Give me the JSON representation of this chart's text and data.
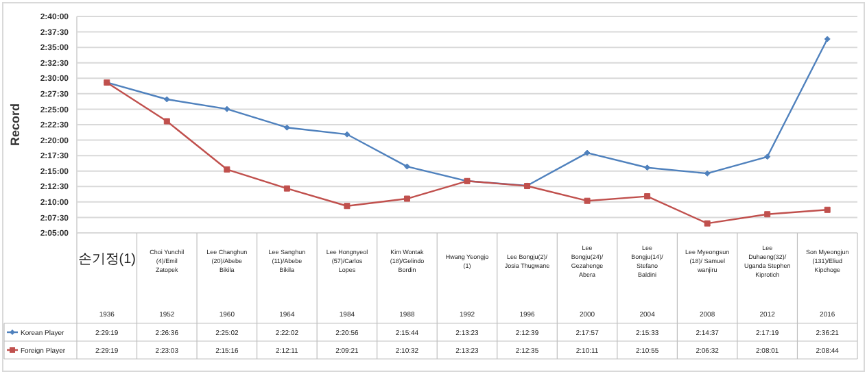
{
  "chart_data": {
    "type": "line",
    "ylabel": "Record",
    "categories": [
      "손기정(1)\n1936",
      "Choi Yunchil (4)/Emil Zatopek\n1952",
      "Lee Changhun (20)/Abebe Bikila\n1960",
      "Lee Sanghun (11)/Abebe Bikila\n1964",
      "Lee Hongnyeol (57)/Carlos Lopes\n1984",
      "Kim Wontak (18)/Gelindo Bordin\n1988",
      "Hwang Yeongjo (1)\n1992",
      "Lee Bongju(2)/Josia Thugwane\n1996",
      "Lee Bongju(24)/Gezahenge Abera\n2000",
      "Lee Bongju(14)/Stefano Baldini\n2004",
      "Lee Myeongsun(18)/ Samuel wanjiru\n2008",
      "Lee Duhaeng(32)/Uganda Stephen Kiprotich\n2012",
      "Son Myeongjun (131)/Eliud Kipchoge\n2016"
    ],
    "series": [
      {
        "name": "Korean Player",
        "color": "#4f81bd",
        "marker": "diamond",
        "values": [
          8959,
          8796,
          8702,
          8522,
          8456,
          8144,
          8003,
          7959,
          8277,
          8133,
          8077,
          8239,
          9381
        ],
        "value_labels": [
          "2:29:19",
          "2:26:36",
          "2:25:02",
          "2:22:02",
          "2:20:56",
          "2:15:44",
          "2:13:23",
          "2:12:39",
          "2:17:57",
          "2:15:33",
          "2:14:37",
          "2:17:19",
          "2:36:21"
        ]
      },
      {
        "name": "Foreign Player",
        "color": "#c0504d",
        "marker": "square",
        "values": [
          8959,
          8583,
          8116,
          7931,
          7761,
          7832,
          8003,
          7955,
          7811,
          7855,
          7592,
          7681,
          7724
        ],
        "value_labels": [
          "2:29:19",
          "2:23:03",
          "2:15:16",
          "2:12:11",
          "2:09:21",
          "2:10:32",
          "2:13:23",
          "2:12:35",
          "2:10:11",
          "2:10:55",
          "2:06:32",
          "2:08:01",
          "2:08:44"
        ]
      }
    ],
    "ylim": [
      7500,
      9600
    ],
    "yticks": [
      {
        "value": 7500,
        "label": "2:05:00"
      },
      {
        "value": 7650,
        "label": "2:07:30"
      },
      {
        "value": 7800,
        "label": "2:10:00"
      },
      {
        "value": 7950,
        "label": "2:12:30"
      },
      {
        "value": 8100,
        "label": "2:15:00"
      },
      {
        "value": 8250,
        "label": "2:17:30"
      },
      {
        "value": 8400,
        "label": "2:20:00"
      },
      {
        "value": 8550,
        "label": "2:22:30"
      },
      {
        "value": 8700,
        "label": "2:25:00"
      },
      {
        "value": 8850,
        "label": "2:27:30"
      },
      {
        "value": 9000,
        "label": "2:30:00"
      },
      {
        "value": 9150,
        "label": "2:32:30"
      },
      {
        "value": 9300,
        "label": "2:35:00"
      },
      {
        "value": 9450,
        "label": "2:37:30"
      },
      {
        "value": 9600,
        "label": "2:40:00"
      }
    ],
    "grid": "y",
    "legend": "bottom left",
    "line_style": "solid"
  }
}
